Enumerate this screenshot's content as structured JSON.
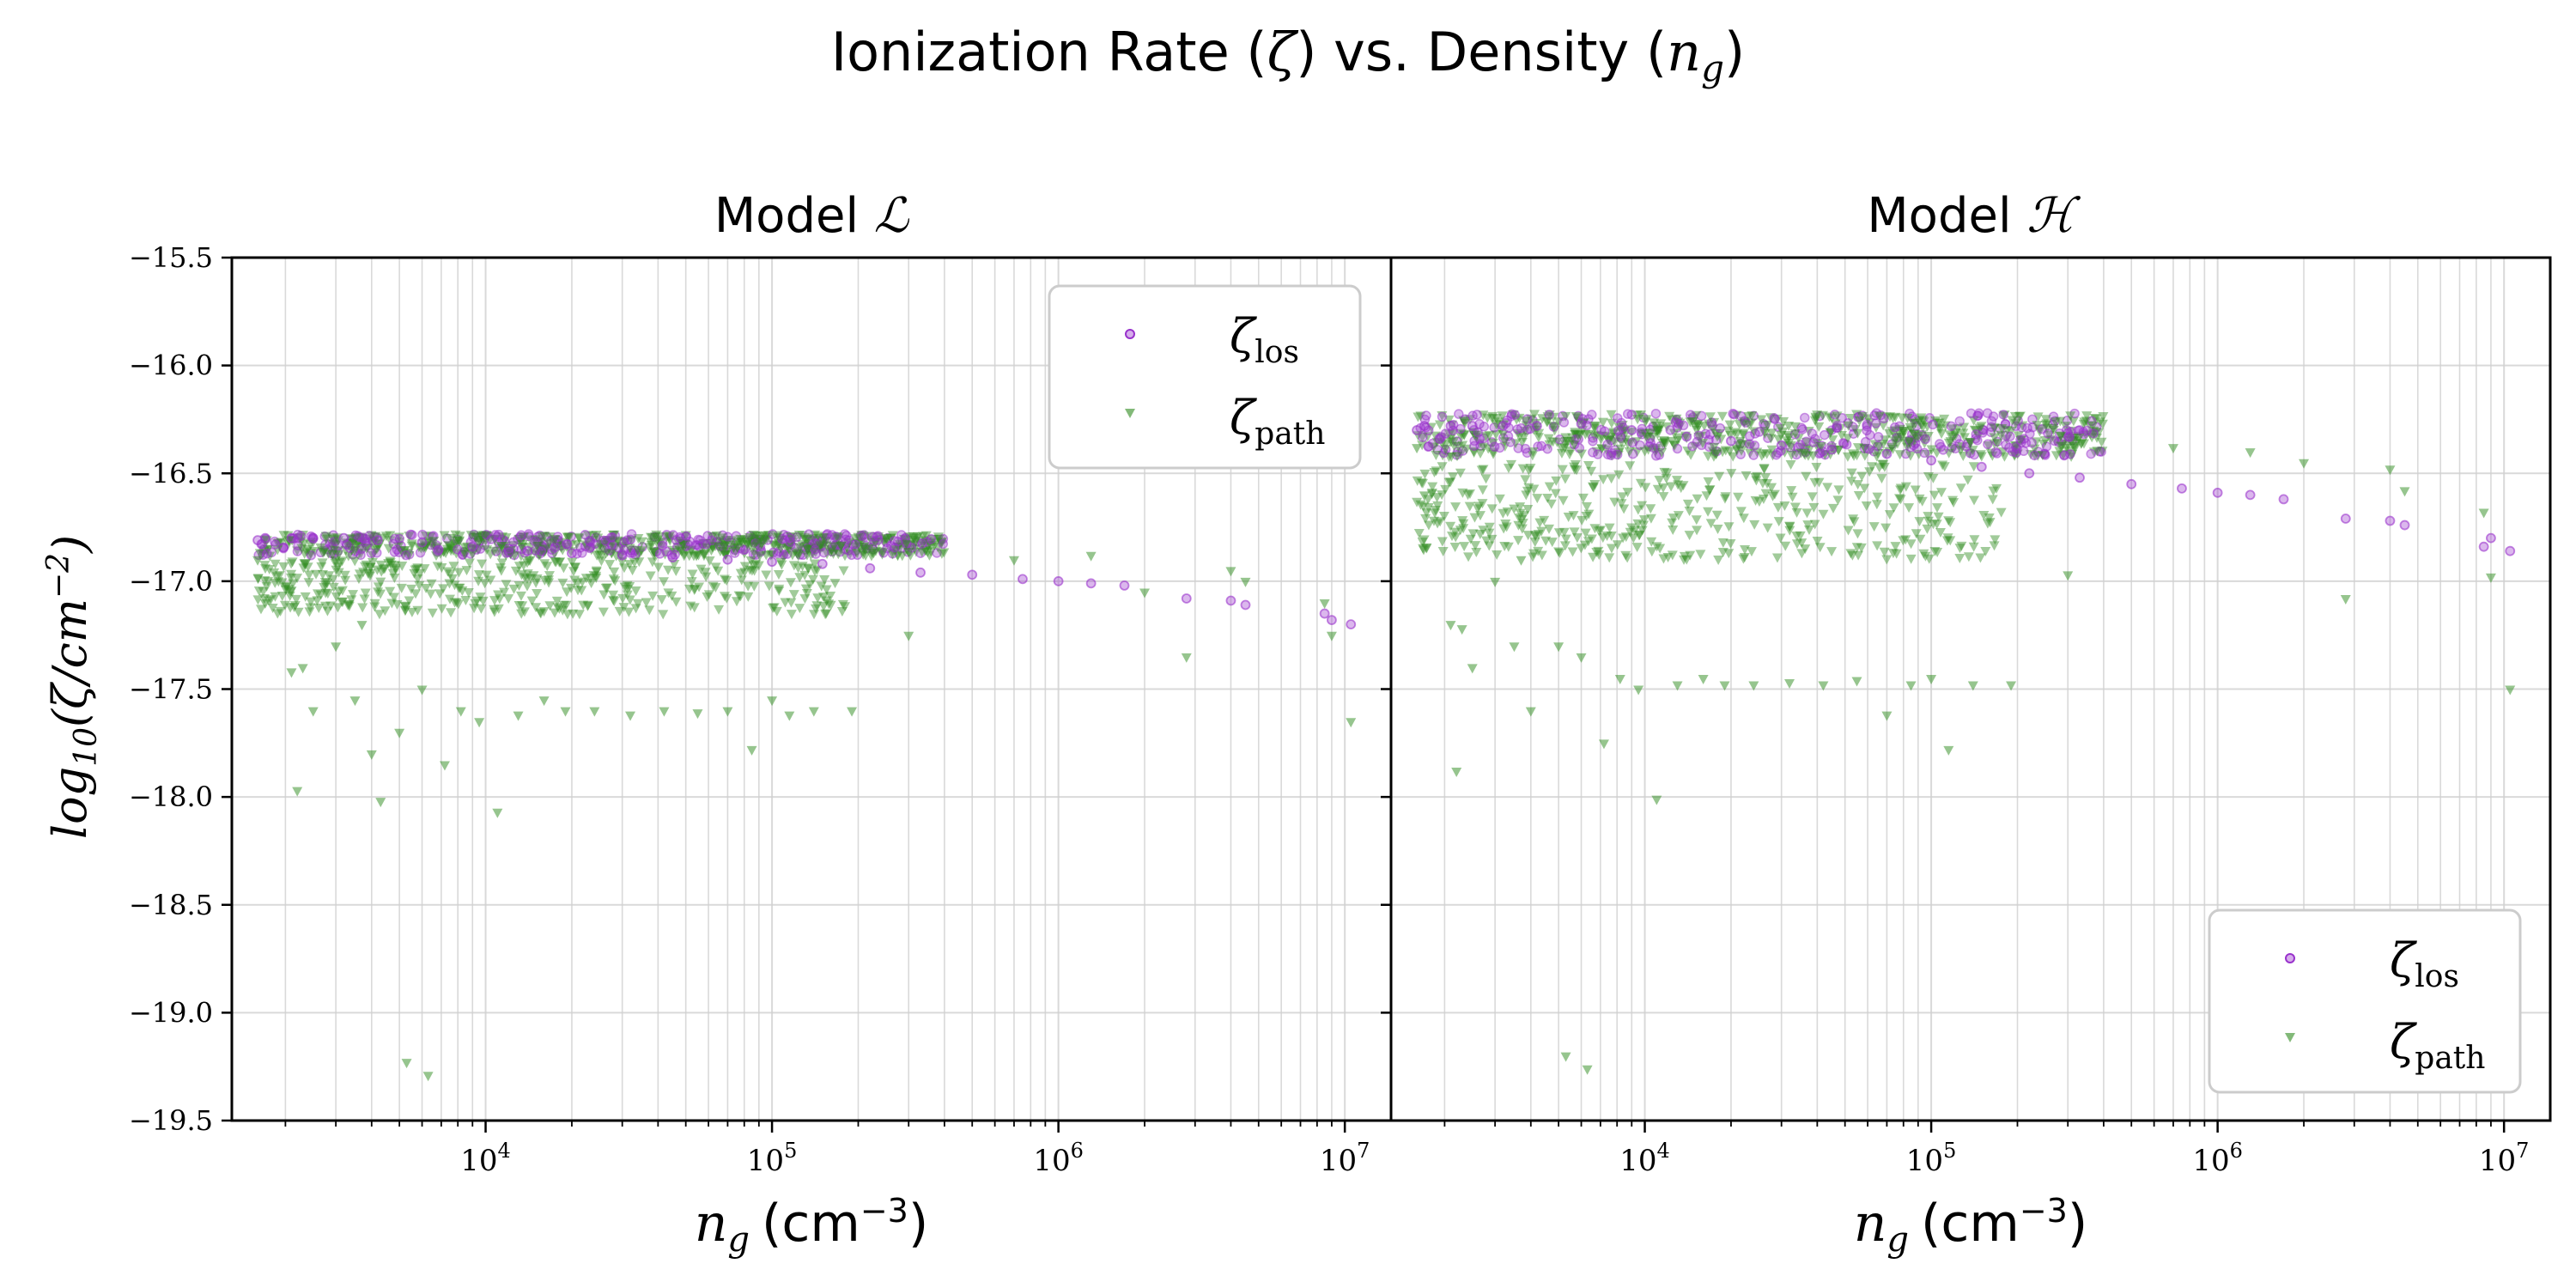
{
  "figure": {
    "title_prefix": "Ionization Rate (",
    "title_zeta": "ζ",
    "title_middle": ") vs. Density (",
    "title_n": "n",
    "title_g": "g",
    "title_suffix": ")"
  },
  "colors": {
    "los": "#9932cc",
    "path": "#2e8b1e",
    "grid": "#d0d0d0"
  },
  "chart_data": [
    {
      "type": "scatter",
      "title_prefix": "Model ",
      "title_symbol": "ℒ",
      "x_scale": "log",
      "xlim": [
        1300,
        14500000
      ],
      "ylim": [
        -19.5,
        -15.5
      ],
      "grid": true,
      "xlabel": {
        "n": "n",
        "sub": "g",
        "unit_open": "(cm",
        "unit_exp": "−3",
        "unit_close": ")"
      },
      "ylabel": {
        "base": "log",
        "sub": "10",
        "body": "(ζ/cm",
        "exp": "−2",
        "close": ")"
      },
      "x_ticks": [
        {
          "value": 10000,
          "base": "10",
          "exp": "4"
        },
        {
          "value": 100000,
          "base": "10",
          "exp": "5"
        },
        {
          "value": 1000000,
          "base": "10",
          "exp": "6"
        },
        {
          "value": 10000000,
          "base": "10",
          "exp": "7"
        }
      ],
      "y_ticks": [
        {
          "value": -15.5,
          "label": "−15.5"
        },
        {
          "value": -16.0,
          "label": "−16.0"
        },
        {
          "value": -16.5,
          "label": "−16.5"
        },
        {
          "value": -17.0,
          "label": "−17.0"
        },
        {
          "value": -17.5,
          "label": "−17.5"
        },
        {
          "value": -18.0,
          "label": "−18.0"
        },
        {
          "value": -18.5,
          "label": "−18.5"
        },
        {
          "value": -19.0,
          "label": "−19.0"
        },
        {
          "value": -19.5,
          "label": "−19.5"
        }
      ],
      "legend": {
        "placement": "top-right",
        "los_label": "ζ",
        "los_sub": "los",
        "path_label": "ζ",
        "path_sub": "path"
      },
      "series": [
        {
          "marker": "circle",
          "points": [
            [
              1600,
              -16.81
            ],
            [
              1700,
              -16.8
            ],
            [
              2100,
              -16.8
            ],
            [
              2500,
              -16.8
            ],
            [
              3200,
              -16.8
            ],
            [
              4200,
              -16.81
            ],
            [
              6000,
              -16.82
            ],
            [
              9000,
              -16.84
            ],
            [
              14000,
              -16.86
            ],
            [
              20000,
              -16.87
            ],
            [
              30000,
              -16.88
            ],
            [
              45000,
              -16.89
            ],
            [
              70000,
              -16.9
            ],
            [
              100000,
              -16.91
            ],
            [
              150000,
              -16.92
            ],
            [
              220000,
              -16.94
            ],
            [
              330000,
              -16.96
            ],
            [
              500000,
              -16.97
            ],
            [
              750000,
              -16.99
            ],
            [
              1000000,
              -17.0
            ],
            [
              1300000,
              -17.01
            ],
            [
              1700000,
              -17.02
            ],
            [
              2800000,
              -17.08
            ],
            [
              4000000,
              -17.09
            ],
            [
              4500000,
              -17.11
            ],
            [
              8500000,
              -17.15
            ],
            [
              9000000,
              -17.18
            ],
            [
              10500000,
              -17.2
            ]
          ]
        },
        {
          "marker": "triangle-down",
          "points": [
            [
              1600,
              -16.9
            ],
            [
              1700,
              -17.1
            ],
            [
              2100,
              -17.42
            ],
            [
              2200,
              -17.97
            ],
            [
              2300,
              -17.4
            ],
            [
              2500,
              -17.6
            ],
            [
              3000,
              -17.3
            ],
            [
              3500,
              -17.55
            ],
            [
              3700,
              -17.2
            ],
            [
              4000,
              -17.8
            ],
            [
              4300,
              -18.02
            ],
            [
              5000,
              -17.7
            ],
            [
              5300,
              -19.23
            ],
            [
              6000,
              -17.5
            ],
            [
              6300,
              -19.29
            ],
            [
              7200,
              -17.85
            ],
            [
              8200,
              -17.6
            ],
            [
              9500,
              -17.65
            ],
            [
              11000,
              -18.07
            ],
            [
              13000,
              -17.62
            ],
            [
              16000,
              -17.55
            ],
            [
              19000,
              -17.6
            ],
            [
              24000,
              -17.6
            ],
            [
              32000,
              -17.62
            ],
            [
              42000,
              -17.6
            ],
            [
              55000,
              -17.61
            ],
            [
              70000,
              -17.6
            ],
            [
              85000,
              -17.78
            ],
            [
              100000,
              -17.55
            ],
            [
              115000,
              -17.62
            ],
            [
              140000,
              -17.6
            ],
            [
              190000,
              -17.6
            ],
            [
              300000,
              -17.25
            ],
            [
              700000,
              -16.9
            ],
            [
              1300000,
              -16.88
            ],
            [
              2000000,
              -17.05
            ],
            [
              2800000,
              -17.35
            ],
            [
              4000000,
              -16.95
            ],
            [
              4500000,
              -17.0
            ],
            [
              8500000,
              -17.1
            ],
            [
              9000000,
              -17.25
            ],
            [
              10500000,
              -17.65
            ]
          ]
        }
      ],
      "bands": [
        {
          "x_range": [
            1600,
            400000
          ],
          "y_range": [
            -16.88,
            -16.78
          ]
        },
        {
          "x_range": [
            1600,
            180000
          ],
          "y_range": [
            -17.15,
            -16.9
          ]
        }
      ]
    },
    {
      "type": "scatter",
      "title_prefix": "Model ",
      "title_symbol": "ℋ",
      "x_scale": "log",
      "xlim": [
        1300,
        14500000
      ],
      "ylim": [
        -19.5,
        -15.5
      ],
      "grid": true,
      "xlabel": {
        "n": "n",
        "sub": "g",
        "unit_open": "(cm",
        "unit_exp": "−3",
        "unit_close": ")"
      },
      "x_ticks": [
        {
          "value": 10000,
          "base": "10",
          "exp": "4"
        },
        {
          "value": 100000,
          "base": "10",
          "exp": "5"
        },
        {
          "value": 1000000,
          "base": "10",
          "exp": "6"
        },
        {
          "value": 10000000,
          "base": "10",
          "exp": "7"
        }
      ],
      "y_ticks": [
        {
          "value": -15.5
        },
        {
          "value": -16.0
        },
        {
          "value": -16.5
        },
        {
          "value": -17.0
        },
        {
          "value": -17.5
        },
        {
          "value": -18.0
        },
        {
          "value": -18.5
        },
        {
          "value": -19.0
        },
        {
          "value": -19.5
        }
      ],
      "legend": {
        "placement": "bottom-right",
        "los_label": "ζ",
        "los_sub": "los",
        "path_label": "ζ",
        "path_sub": "path"
      },
      "series": [
        {
          "marker": "circle",
          "points": [
            [
              1600,
              -16.3
            ],
            [
              1700,
              -16.28
            ],
            [
              2100,
              -16.28
            ],
            [
              2500,
              -16.28
            ],
            [
              3200,
              -16.28
            ],
            [
              4200,
              -16.28
            ],
            [
              6000,
              -16.27
            ],
            [
              9000,
              -16.3
            ],
            [
              14000,
              -16.33
            ],
            [
              20000,
              -16.35
            ],
            [
              30000,
              -16.37
            ],
            [
              45000,
              -16.39
            ],
            [
              70000,
              -16.41
            ],
            [
              100000,
              -16.44
            ],
            [
              150000,
              -16.47
            ],
            [
              220000,
              -16.5
            ],
            [
              330000,
              -16.52
            ],
            [
              500000,
              -16.55
            ],
            [
              750000,
              -16.57
            ],
            [
              1000000,
              -16.59
            ],
            [
              1300000,
              -16.6
            ],
            [
              1700000,
              -16.62
            ],
            [
              2800000,
              -16.71
            ],
            [
              4000000,
              -16.72
            ],
            [
              4500000,
              -16.74
            ],
            [
              8500000,
              -16.84
            ],
            [
              9000000,
              -16.8
            ],
            [
              10500000,
              -16.86
            ]
          ]
        },
        {
          "marker": "triangle-down",
          "points": [
            [
              1600,
              -16.38
            ],
            [
              1700,
              -16.6
            ],
            [
              2100,
              -17.2
            ],
            [
              2200,
              -17.88
            ],
            [
              2300,
              -17.22
            ],
            [
              2500,
              -17.4
            ],
            [
              3000,
              -17.0
            ],
            [
              3500,
              -17.3
            ],
            [
              3700,
              -16.9
            ],
            [
              4000,
              -17.6
            ],
            [
              5000,
              -17.3
            ],
            [
              5300,
              -19.2
            ],
            [
              6000,
              -17.35
            ],
            [
              6300,
              -19.26
            ],
            [
              7200,
              -17.75
            ],
            [
              8200,
              -17.45
            ],
            [
              9500,
              -17.5
            ],
            [
              11000,
              -18.01
            ],
            [
              13000,
              -17.48
            ],
            [
              16000,
              -17.45
            ],
            [
              19000,
              -17.48
            ],
            [
              24000,
              -17.48
            ],
            [
              32000,
              -17.47
            ],
            [
              42000,
              -17.48
            ],
            [
              55000,
              -17.46
            ],
            [
              70000,
              -17.62
            ],
            [
              85000,
              -17.48
            ],
            [
              100000,
              -17.45
            ],
            [
              115000,
              -17.78
            ],
            [
              140000,
              -17.48
            ],
            [
              190000,
              -17.48
            ],
            [
              300000,
              -16.97
            ],
            [
              700000,
              -16.38
            ],
            [
              1300000,
              -16.4
            ],
            [
              2000000,
              -16.45
            ],
            [
              2800000,
              -17.08
            ],
            [
              4000000,
              -16.48
            ],
            [
              4500000,
              -16.58
            ],
            [
              8500000,
              -16.68
            ],
            [
              9000000,
              -16.98
            ],
            [
              10500000,
              -17.5
            ]
          ]
        }
      ],
      "bands": [
        {
          "x_range": [
            1600,
            400000
          ],
          "y_range": [
            -16.42,
            -16.22
          ]
        },
        {
          "x_range": [
            1600,
            180000
          ],
          "y_range": [
            -16.9,
            -16.45
          ]
        }
      ]
    }
  ]
}
